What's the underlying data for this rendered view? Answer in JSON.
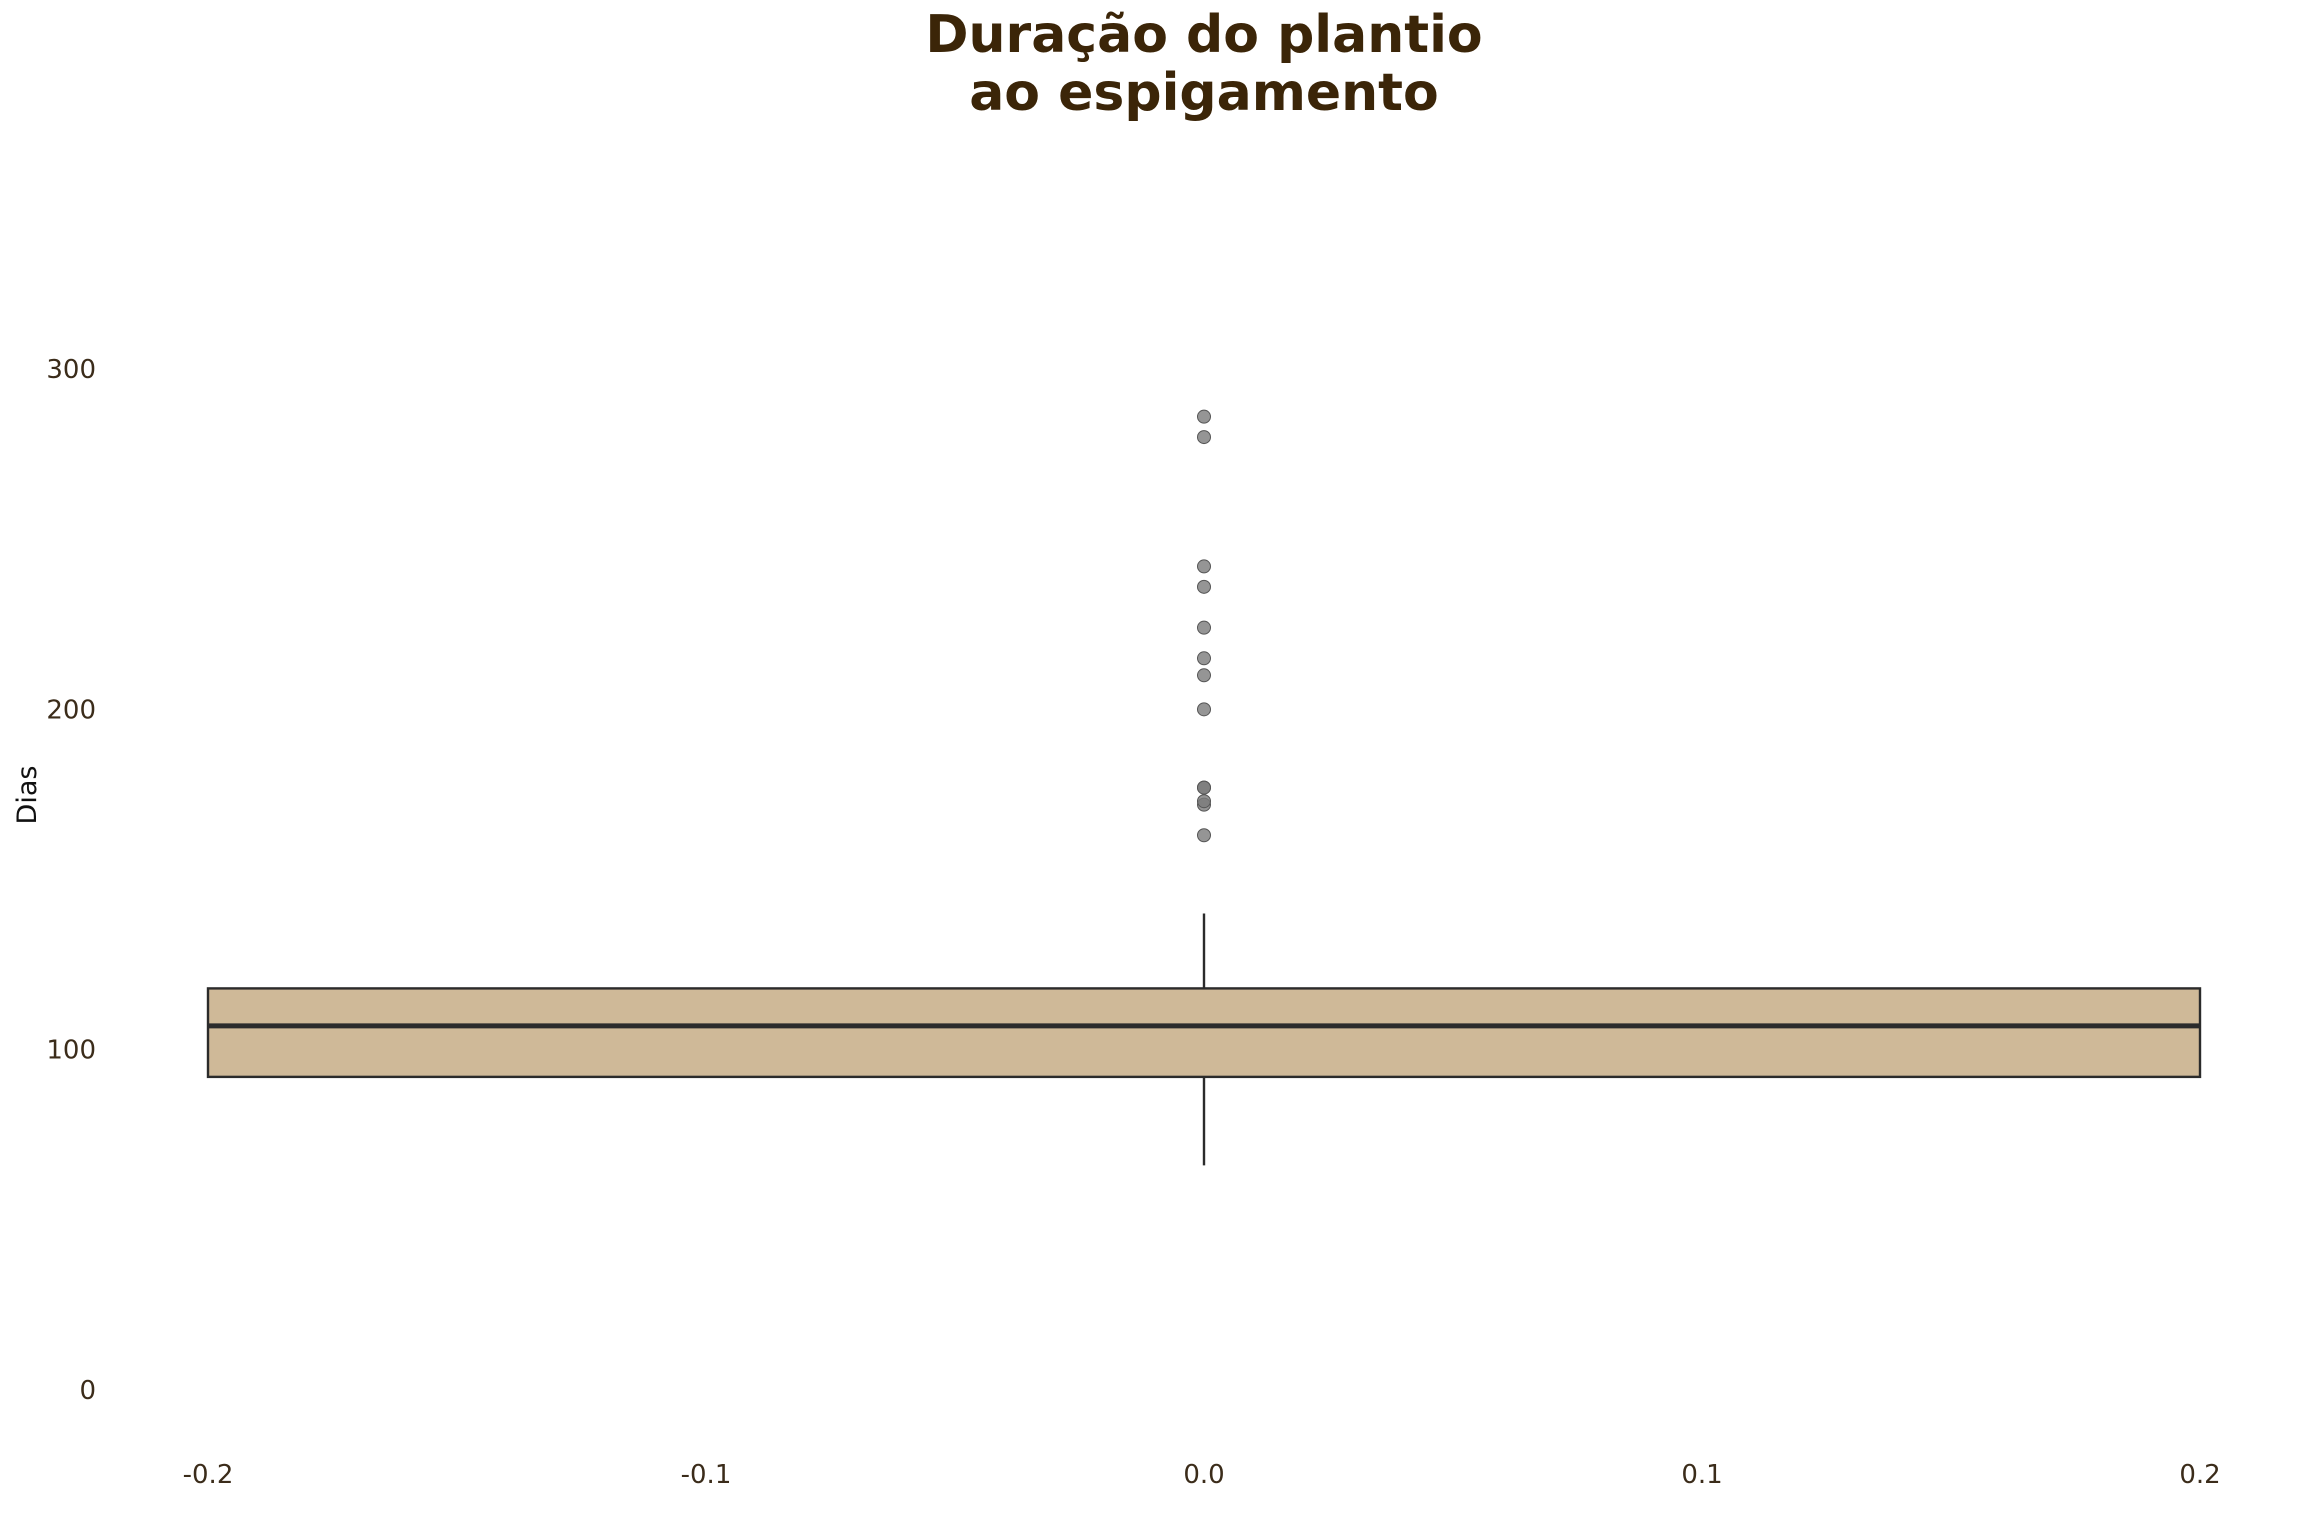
{
  "chart_data": {
    "type": "box",
    "title_lines": [
      "Duração do plantio",
      "ao espigamento"
    ],
    "ylabel": "Dias",
    "xlabel": "",
    "xlim": [
      -0.2,
      0.2
    ],
    "ylim": [
      0,
      300
    ],
    "x_ticks": [
      "-0.2",
      "-0.1",
      "0.0",
      "0.1",
      "0.2"
    ],
    "y_ticks": [
      "0",
      "100",
      "200",
      "300"
    ],
    "grid": false,
    "box": {
      "position": 0.0,
      "whisker_low": 66,
      "q1": 92,
      "median": 107,
      "q3": 118,
      "whisker_high": 140
    },
    "outliers": [
      163,
      172,
      173,
      177,
      177,
      200,
      210,
      215,
      224,
      236,
      242,
      280,
      286
    ],
    "colors": {
      "box_fill": "#cfb998",
      "box_edge": "#2b2b2b",
      "outlier": "#7a7a7a",
      "title": "#3b2508"
    }
  }
}
